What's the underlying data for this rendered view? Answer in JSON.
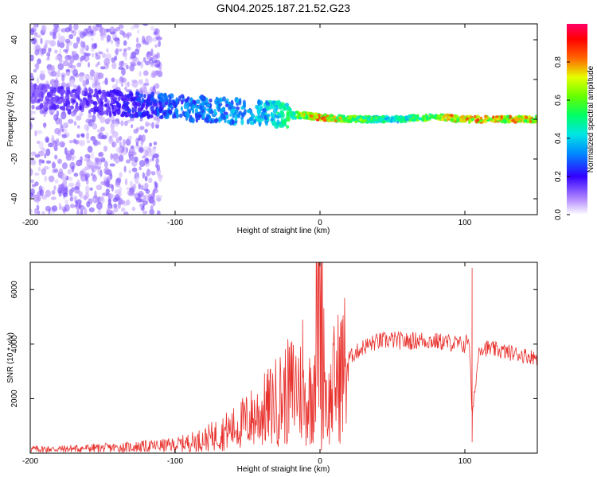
{
  "figure": {
    "title": "GN04.2025.187.21.52.G23"
  },
  "chart_data": [
    {
      "type": "heatmap",
      "title": "GN04.2025.187.21.52.G23",
      "xlabel": "Height of straight line (km)",
      "ylabel": "Frequency (Hz)",
      "xlim": [
        -200,
        150
      ],
      "ylim": [
        -48,
        48
      ],
      "xticks": [
        -200,
        -100,
        0,
        100
      ],
      "yticks": [
        -40,
        -20,
        0,
        20,
        40
      ],
      "colorbar": {
        "label": "Normalized spectral amplitude",
        "range": [
          0,
          1
        ],
        "ticks": [
          0.0,
          0.2,
          0.4,
          0.6,
          0.8
        ],
        "colormap": [
          "#ffffff",
          "#9966ff",
          "#3300ff",
          "#00aaff",
          "#00ffaa",
          "#66ff00",
          "#ffff00",
          "#ff6600",
          "#ff0000",
          "#ff0066"
        ]
      },
      "ridge": {
        "description": "dominant frequency ridge",
        "x": [
          -200,
          -180,
          -160,
          -140,
          -120,
          -100,
          -80,
          -60,
          -40,
          -20,
          -10,
          0,
          20,
          50,
          80,
          100,
          150
        ],
        "freq_hz": [
          12,
          10,
          9,
          8,
          7,
          6,
          5,
          4,
          3,
          2,
          2,
          1,
          0,
          0,
          1,
          0,
          0
        ],
        "amplitude": [
          0.15,
          0.18,
          0.2,
          0.22,
          0.3,
          0.35,
          0.38,
          0.4,
          0.45,
          0.6,
          0.85,
          0.9,
          0.75,
          0.5,
          0.8,
          0.9,
          0.85
        ]
      }
    },
    {
      "type": "line",
      "xlabel": "Height of straight line (km)",
      "ylabel": "SNR (10 * v/v)",
      "xlim": [
        -200,
        150
      ],
      "ylim": [
        0,
        7000
      ],
      "xticks": [
        -200,
        -100,
        0,
        100
      ],
      "yticks": [
        2000,
        4000,
        6000
      ],
      "color": "#e8322e",
      "series": [
        {
          "x": [
            -200,
            -180,
            -160,
            -140,
            -120,
            -100,
            -90,
            -80,
            -70,
            -60,
            -50,
            -40,
            -30,
            -25,
            -20,
            -15,
            -10,
            -5,
            0,
            5,
            10,
            15,
            20,
            30,
            40,
            50,
            60,
            70,
            80,
            90,
            100,
            103,
            105,
            110,
            120,
            130,
            140,
            150
          ],
          "y": [
            150,
            150,
            180,
            200,
            250,
            300,
            400,
            500,
            700,
            900,
            1200,
            1500,
            1900,
            2100,
            2300,
            2500,
            1800,
            2300,
            6500,
            1500,
            2600,
            3000,
            3500,
            3900,
            4100,
            4150,
            4100,
            4150,
            4100,
            4050,
            3950,
            4300,
            1300,
            3900,
            3800,
            3700,
            3600,
            3500
          ]
        }
      ],
      "spikes": [
        {
          "x": -12,
          "y": 4900
        },
        {
          "x": 0,
          "y": 7000
        },
        {
          "x": 1,
          "y": 100
        },
        {
          "x": 105,
          "y": 6800
        },
        {
          "x": 105,
          "y": 400
        }
      ]
    }
  ]
}
